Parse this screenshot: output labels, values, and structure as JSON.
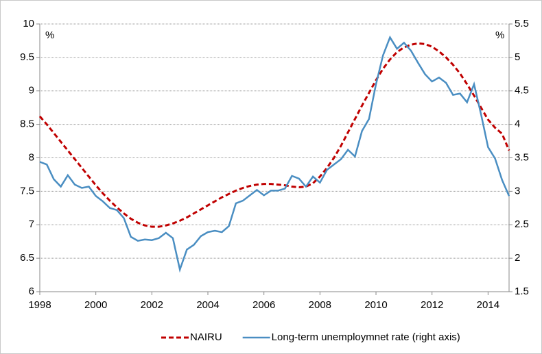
{
  "chart_data": {
    "type": "line",
    "y_unit_label": "%",
    "y2_unit_label": "%",
    "x": [
      1998,
      1998.25,
      1998.5,
      1998.75,
      1999,
      1999.25,
      1999.5,
      1999.75,
      2000,
      2000.25,
      2000.5,
      2000.75,
      2001,
      2001.25,
      2001.5,
      2001.75,
      2002,
      2002.25,
      2002.5,
      2002.75,
      2003,
      2003.25,
      2003.5,
      2003.75,
      2004,
      2004.25,
      2004.5,
      2004.75,
      2005,
      2005.25,
      2005.5,
      2005.75,
      2006,
      2006.25,
      2006.5,
      2006.75,
      2007,
      2007.25,
      2007.5,
      2007.75,
      2008,
      2008.25,
      2008.5,
      2008.75,
      2009,
      2009.25,
      2009.5,
      2009.75,
      2010,
      2010.25,
      2010.5,
      2010.75,
      2011,
      2011.25,
      2011.5,
      2011.75,
      2012,
      2012.25,
      2012.5,
      2012.75,
      2013,
      2013.25,
      2013.5,
      2013.75,
      2014,
      2014.25,
      2014.5,
      2014.75
    ],
    "series": [
      {
        "name": "NAIRU",
        "color": "#c00000",
        "dashed": true,
        "axis": "y",
        "values": [
          8.62,
          8.5,
          8.37,
          8.24,
          8.11,
          7.98,
          7.85,
          7.72,
          7.59,
          7.47,
          7.36,
          7.26,
          7.17,
          7.09,
          7.03,
          6.99,
          6.97,
          6.97,
          6.99,
          7.02,
          7.06,
          7.11,
          7.17,
          7.23,
          7.29,
          7.35,
          7.41,
          7.46,
          7.51,
          7.55,
          7.58,
          7.6,
          7.61,
          7.61,
          7.6,
          7.59,
          7.57,
          7.56,
          7.57,
          7.62,
          7.72,
          7.85,
          8.0,
          8.18,
          8.38,
          8.58,
          8.78,
          8.97,
          9.16,
          9.33,
          9.47,
          9.58,
          9.65,
          9.69,
          9.71,
          9.7,
          9.66,
          9.59,
          9.5,
          9.39,
          9.26,
          9.1,
          8.93,
          8.75,
          8.57,
          8.45,
          8.36,
          8.11
        ]
      },
      {
        "name": "Long-term unemploymnet rate (right axis)",
        "color": "#4a8ec2",
        "dashed": false,
        "axis": "y2",
        "values": [
          3.44,
          3.4,
          3.18,
          3.07,
          3.24,
          3.1,
          3.05,
          3.07,
          2.93,
          2.85,
          2.75,
          2.72,
          2.6,
          2.32,
          2.26,
          2.28,
          2.27,
          2.3,
          2.38,
          2.3,
          1.83,
          2.13,
          2.2,
          2.33,
          2.39,
          2.41,
          2.39,
          2.48,
          2.82,
          2.86,
          2.94,
          3.02,
          2.94,
          3.01,
          3.01,
          3.04,
          3.23,
          3.19,
          3.07,
          3.22,
          3.13,
          3.32,
          3.4,
          3.48,
          3.62,
          3.52,
          3.9,
          4.08,
          4.6,
          5.03,
          5.3,
          5.13,
          5.22,
          5.1,
          4.92,
          4.75,
          4.64,
          4.7,
          4.62,
          4.44,
          4.46,
          4.33,
          4.6,
          4.15,
          3.66,
          3.49,
          3.17,
          2.93
        ]
      }
    ],
    "xlim": [
      1998,
      2014.75
    ],
    "xticks": [
      1998,
      2000,
      2002,
      2004,
      2006,
      2008,
      2010,
      2012,
      2014
    ],
    "ylim": [
      6,
      10
    ],
    "yticks": [
      6,
      6.5,
      7,
      7.5,
      8,
      8.5,
      9,
      9.5,
      10
    ],
    "y2lim": [
      1.5,
      5.5
    ],
    "y2ticks": [
      1.5,
      2,
      2.5,
      3,
      3.5,
      4,
      4.5,
      5,
      5.5
    ],
    "grid": true,
    "legend": "bottom"
  }
}
